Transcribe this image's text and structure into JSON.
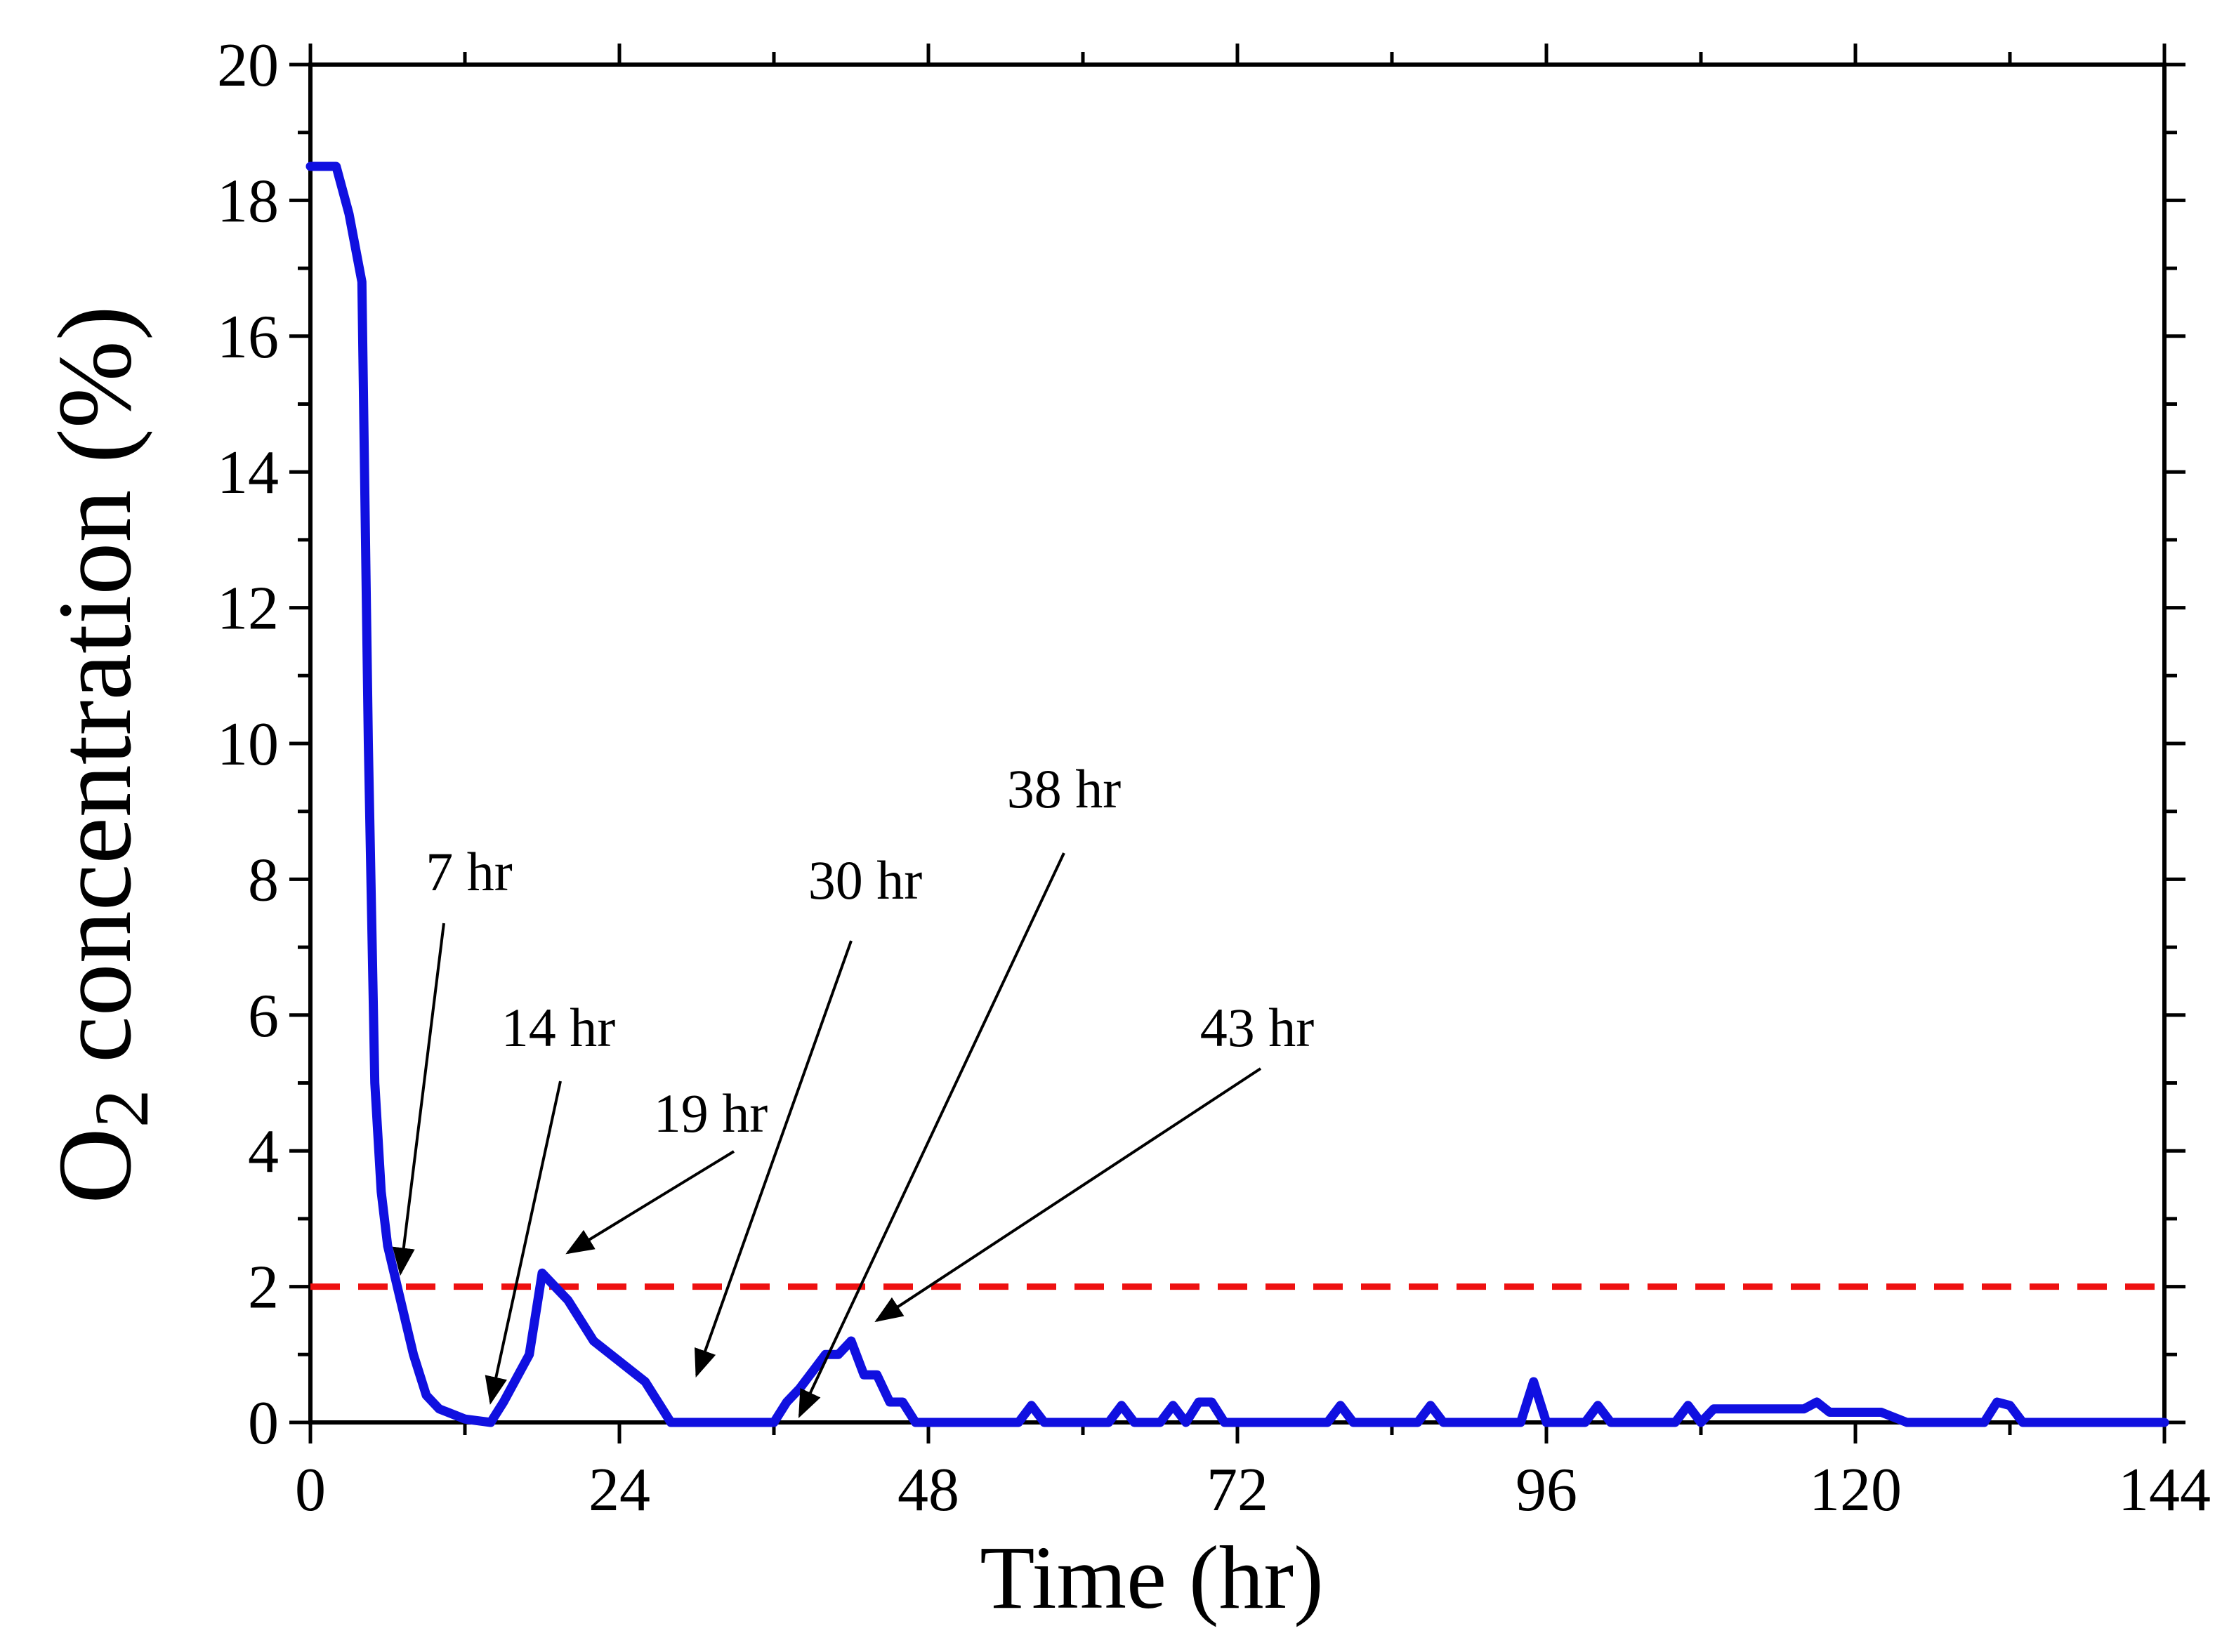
{
  "chart_data": {
    "type": "line",
    "title": "",
    "xlabel": "Time (hr)",
    "ylabel": {
      "main": "O",
      "subscript": "2",
      "rest": " concentration (%)"
    },
    "xlim": [
      0,
      144
    ],
    "ylim": [
      0,
      20
    ],
    "xticks": [
      0,
      24,
      48,
      72,
      96,
      120,
      144
    ],
    "yticks": [
      0,
      2,
      4,
      6,
      8,
      10,
      12,
      14,
      16,
      18,
      20
    ],
    "grid": false,
    "series": [
      {
        "name": "O2 concentration",
        "color": "#1010e0",
        "x": [
          0,
          2,
          3,
          4,
          4.5,
          5,
          5.5,
          6,
          7,
          8,
          9,
          10,
          12,
          14,
          15,
          17,
          18,
          19,
          20,
          22,
          24,
          26,
          28,
          30,
          32,
          34,
          36,
          37,
          38,
          40,
          41,
          42,
          43,
          44,
          45,
          46,
          47,
          48,
          50,
          55,
          56,
          57,
          62,
          63,
          64,
          66,
          67,
          68,
          69,
          70,
          71,
          72,
          79,
          80,
          81,
          86,
          87,
          88,
          94,
          95,
          96,
          99,
          100,
          101,
          106,
          107,
          108,
          109,
          115,
          116,
          117,
          118,
          122,
          124,
          130,
          131,
          132,
          133,
          134,
          144
        ],
        "values": [
          18.5,
          18.5,
          17.8,
          16.8,
          10,
          5,
          3.4,
          2.6,
          1.8,
          1.0,
          0.4,
          0.2,
          0.05,
          0.0,
          0.3,
          1.0,
          2.2,
          2.0,
          1.8,
          1.2,
          0.9,
          0.6,
          0.0,
          0.0,
          0.0,
          0.0,
          0.0,
          0.3,
          0.5,
          1.0,
          1.0,
          1.2,
          0.7,
          0.7,
          0.3,
          0.3,
          0.0,
          0.0,
          0.0,
          0.0,
          0.25,
          0.0,
          0.0,
          0.25,
          0.0,
          0.0,
          0.25,
          0.0,
          0.3,
          0.3,
          0.0,
          0.0,
          0.0,
          0.25,
          0.0,
          0.0,
          0.25,
          0.0,
          0.0,
          0.6,
          0.0,
          0.0,
          0.25,
          0.0,
          0.0,
          0.25,
          0.0,
          0.2,
          0.2,
          0.2,
          0.3,
          0.15,
          0.15,
          0.0,
          0.0,
          0.3,
          0.25,
          0.0,
          0.0,
          0.0
        ]
      }
    ],
    "reference_lines": [
      {
        "name": "threshold",
        "y": 2,
        "color": "#ee1111",
        "style": "dashed",
        "label": "2"
      }
    ],
    "annotations": [
      {
        "text": "7 hr",
        "target": [
          7,
          2.2
        ]
      },
      {
        "text": "14 hr",
        "target": [
          14,
          0.3
        ]
      },
      {
        "text": "19 hr",
        "target": [
          20,
          2.5
        ]
      },
      {
        "text": "30 hr",
        "target": [
          30,
          0.7
        ]
      },
      {
        "text": "38 hr",
        "target": [
          38,
          0.1
        ]
      },
      {
        "text": "43 hr",
        "target": [
          44,
          1.5
        ]
      }
    ]
  }
}
